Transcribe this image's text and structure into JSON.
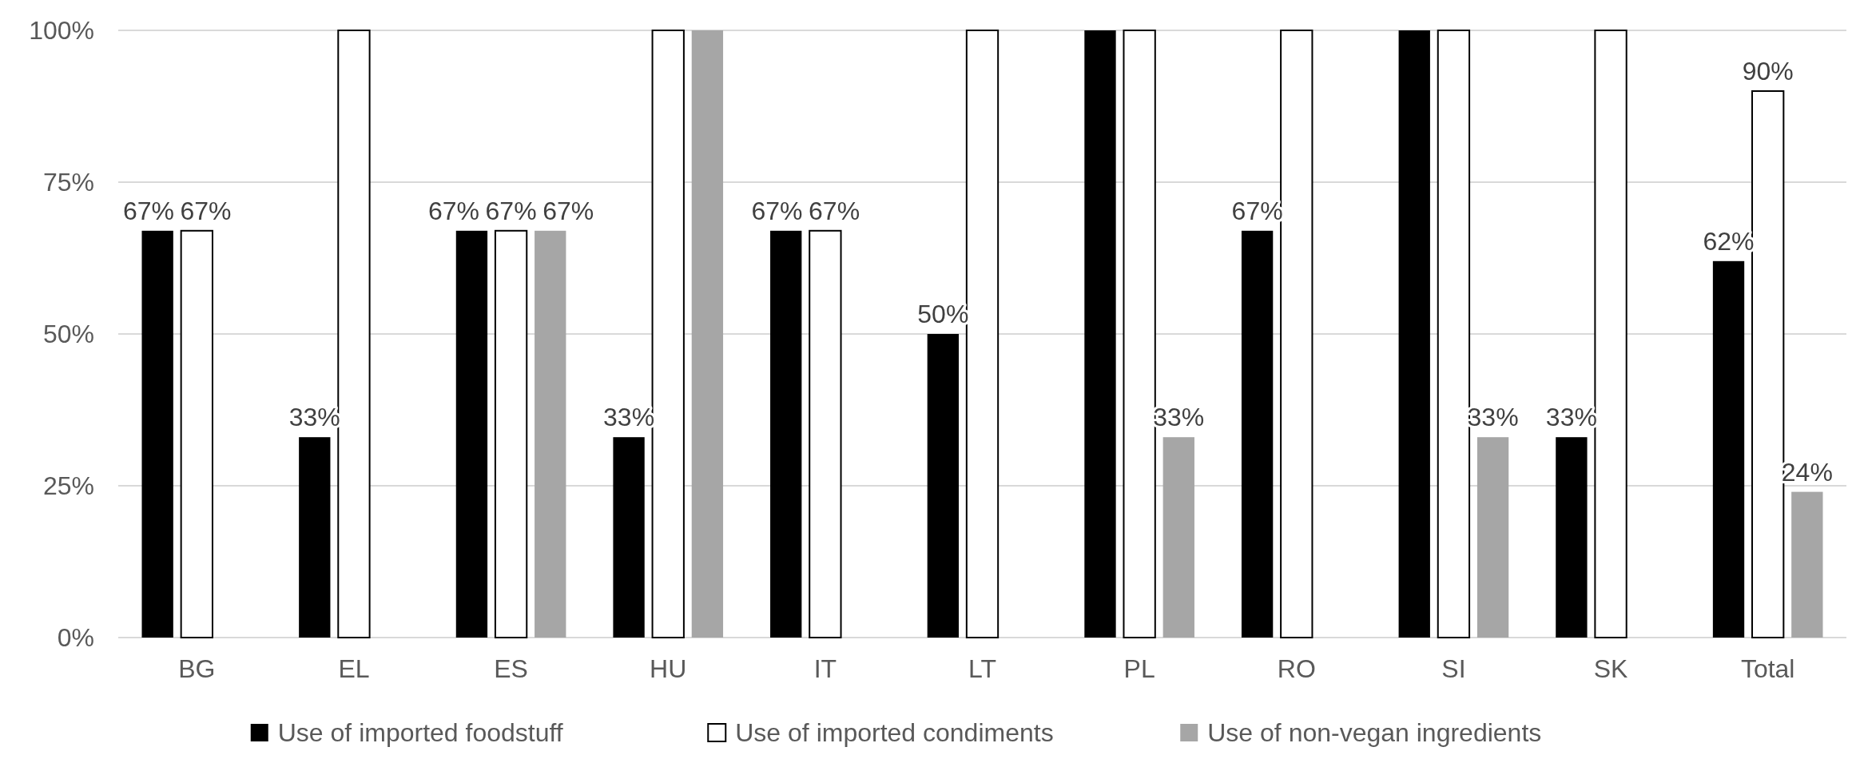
{
  "chart_data": {
    "type": "bar",
    "categories": [
      "BG",
      "EL",
      "ES",
      "HU",
      "IT",
      "LT",
      "PL",
      "RO",
      "SI",
      "SK",
      "Total"
    ],
    "series": [
      {
        "name": "Use of imported foodstuff",
        "color": "#000000",
        "values": [
          67,
          33,
          67,
          33,
          67,
          50,
          100,
          67,
          100,
          33,
          62
        ],
        "value_labels": [
          "67%",
          "33%",
          "67%",
          "33%",
          "67%",
          "50%",
          null,
          "67%",
          null,
          "33%",
          "62%"
        ]
      },
      {
        "name": "Use of imported condiments",
        "color": "#ffffff",
        "values": [
          67,
          100,
          67,
          100,
          67,
          100,
          100,
          100,
          100,
          100,
          90
        ],
        "value_labels": [
          "67%",
          null,
          "67%",
          null,
          "67%",
          null,
          null,
          null,
          null,
          null,
          "90%"
        ]
      },
      {
        "name": "Use of non-vegan ingredients",
        "color": "#a6a6a6",
        "values": [
          0,
          0,
          67,
          100,
          0,
          0,
          33,
          0,
          33,
          0,
          24
        ],
        "value_labels": [
          null,
          null,
          "67%",
          null,
          null,
          null,
          "33%",
          null,
          "33%",
          null,
          "24%"
        ]
      }
    ],
    "ylim": [
      0,
      100
    ],
    "yticks": [
      {
        "value": 0,
        "label": "0%"
      },
      {
        "value": 25,
        "label": "25%"
      },
      {
        "value": 50,
        "label": "50%"
      },
      {
        "value": 75,
        "label": "75%"
      },
      {
        "value": 100,
        "label": "100%"
      }
    ],
    "grid": "y",
    "legend": "bottom"
  }
}
